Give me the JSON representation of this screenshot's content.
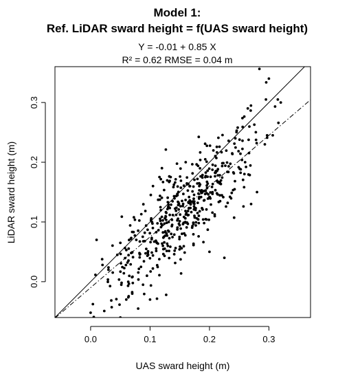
{
  "chart_data": {
    "type": "scatter",
    "title": "Model 1:",
    "subtitle": "Ref. LiDAR sward height = f(UAS sward height)",
    "equation": "Y = -0.01 + 0.85 X",
    "stats": "R² = 0.62 RMSE = 0.04 m",
    "xlabel": "UAS sward height (m)",
    "ylabel": "LiDAR sward height (m)",
    "xlim": [
      -0.06,
      0.37
    ],
    "ylim": [
      -0.06,
      0.36
    ],
    "xticks": [
      "0.0",
      "0.1",
      "0.2",
      "0.3"
    ],
    "yticks": [
      "0.0",
      "0.1",
      "0.2",
      "0.3"
    ],
    "xtick_values": [
      0.0,
      0.1,
      0.2,
      0.3
    ],
    "ytick_values": [
      0.0,
      0.1,
      0.2,
      0.3
    ],
    "grid": false,
    "lines": [
      {
        "style": "solid",
        "intercept": 0.0,
        "slope": 1.0
      },
      {
        "style": "dash-dot",
        "intercept": -0.01,
        "slope": 0.85
      }
    ],
    "point_count": 520,
    "points": [
      [
        0.0,
        -0.052
      ],
      [
        0.008,
        -0.066
      ],
      [
        0.01,
        0.07
      ],
      [
        0.05,
        -0.06
      ],
      [
        0.3,
        0.34
      ],
      [
        0.32,
        0.3
      ],
      [
        0.315,
        0.305
      ],
      [
        0.295,
        0.305
      ],
      [
        0.28,
        0.15
      ],
      [
        0.05,
        0.065
      ],
      [
        0.045,
        0.045
      ],
      [
        0.03,
        0.02
      ],
      [
        0.02,
        0.028
      ],
      [
        0.06,
        -0.03
      ],
      [
        0.07,
        -0.02
      ],
      [
        0.1,
        -0.03
      ],
      [
        0.08,
        -0.045
      ],
      [
        0.105,
        0.16
      ],
      [
        0.12,
        0.19
      ],
      [
        0.16,
        0.2
      ],
      [
        0.2,
        0.05
      ],
      [
        0.225,
        0.04
      ],
      [
        0.26,
        0.2
      ],
      [
        0.27,
        0.13
      ]
    ],
    "point_cloud": {
      "x_mean": 0.155,
      "x_sd": 0.06,
      "intercept": -0.01,
      "slope": 0.85,
      "residual_sd": 0.04,
      "x_range": [
        0.0,
        0.32
      ],
      "seed": 7
    }
  }
}
